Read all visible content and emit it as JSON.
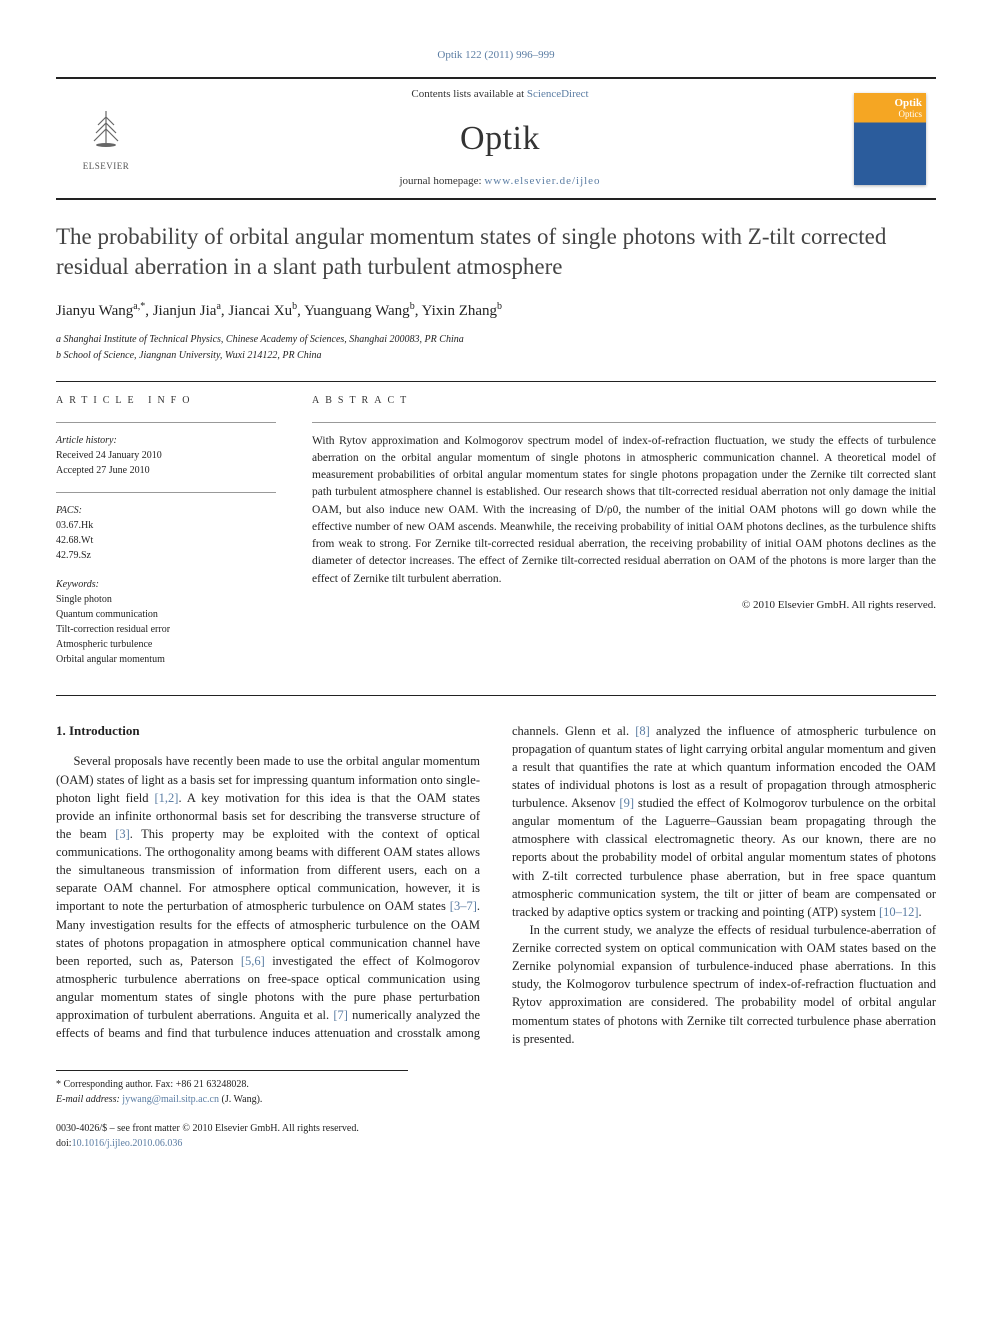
{
  "citation": "Optik 122 (2011) 996–999",
  "masthead": {
    "contents_line_prefix": "Contents lists available at ",
    "contents_link": "ScienceDirect",
    "journal": "Optik",
    "homepage_prefix": "journal homepage: ",
    "homepage_url": "www.elsevier.de/ijleo",
    "publisher_name": "ELSEVIER"
  },
  "title": "The probability of orbital angular momentum states of single photons with Z-tilt corrected residual aberration in a slant path turbulent atmosphere",
  "authors_html": "Jianyu Wang<sup>a,*</sup>, Jianjun Jia<sup>a</sup>, Jiancai Xu<sup>b</sup>, Yuanguang Wang<sup>b</sup>, Yixin Zhang<sup>b</sup>",
  "affiliations": [
    "a Shanghai Institute of Technical Physics, Chinese Academy of Sciences, Shanghai 200083, PR China",
    "b School of Science, Jiangnan University, Wuxi 214122, PR China"
  ],
  "article_info_label": "article info",
  "abstract_label": "abstract",
  "history": {
    "hd": "Article history:",
    "received": "Received 24 January 2010",
    "accepted": "Accepted 27 June 2010"
  },
  "pacs": {
    "hd": "PACS:",
    "items": [
      "03.67.Hk",
      "42.68.Wt",
      "42.79.Sz"
    ]
  },
  "keywords": {
    "hd": "Keywords:",
    "items": [
      "Single photon",
      "Quantum communication",
      "Tilt-correction residual error",
      "Atmospheric turbulence",
      "Orbital angular momentum"
    ]
  },
  "abstract": "With Rytov approximation and Kolmogorov spectrum model of index-of-refraction fluctuation, we study the effects of turbulence aberration on the orbital angular momentum of single photons in atmospheric communication channel. A theoretical model of measurement probabilities of orbital angular momentum states for single photons propagation under the Zernike tilt corrected slant path turbulent atmosphere channel is established. Our research shows that tilt-corrected residual aberration not only damage the initial OAM, but also induce new OAM. With the increasing of D/ρ0, the number of the initial OAM photons will go down while the effective number of new OAM ascends. Meanwhile, the receiving probability of initial OAM photons declines, as the turbulence shifts from weak to strong. For Zernike tilt-corrected residual aberration, the receiving probability of initial OAM photons declines as the diameter of detector increases. The effect of Zernike tilt-corrected residual aberration on OAM of the photons is more larger than the effect of Zernike tilt turbulent aberration.",
  "abstract_copyright": "© 2010 Elsevier GmbH. All rights reserved.",
  "intro_heading": "1. Introduction",
  "intro_p1_a": "Several proposals have recently been made to use the orbital angular momentum (OAM) states of light as a basis set for impressing quantum information onto single-photon light field ",
  "intro_p1_link1": "[1,2]",
  "intro_p1_b": ". A key motivation for this idea is that the OAM states provide an infinite orthonormal basis set for describing the transverse structure of the beam ",
  "intro_p1_link2": "[3]",
  "intro_p1_c": ". This property may be exploited with the context of optical communications. The orthogonality among beams with different OAM states allows the simultaneous transmission of information from different users, each on a separate OAM channel. For atmosphere optical communication, however, it is important to note the perturbation of atmospheric turbulence on OAM states ",
  "intro_p1_link3": "[3–7]",
  "intro_p1_d": ". Many investigation results for the effects of atmospheric turbulence on the OAM states of photons propagation in atmosphere optical communication channel have been reported, such as, Paterson ",
  "intro_p1_link4": "[5,6]",
  "intro_p1_e": " investigated the effect of Kolmogorov atmospheric turbulence aberrations on free-space optical communication using angular momentum states of single photons with the pure phase perturbation approximation of turbulent aberrations. Anguita et al. ",
  "intro_p1_link5": "[7]",
  "intro_p1_f": " numerically analyzed the effects of beams and find that turbulence induces attenuation and crosstalk among channels. Glenn et al. ",
  "intro_p1_link6": "[8]",
  "intro_p1_g": " analyzed the influence of atmospheric turbulence on propagation of quantum states of light carrying orbital angular momentum and given a result that quantifies the rate at which quantum information encoded the OAM states of individual photons is lost as a result of propagation through atmospheric turbulence. Aksenov ",
  "intro_p1_link7": "[9]",
  "intro_p1_h": " studied the effect of Kolmogorov turbulence on the orbital angular momentum of the Laguerre–Gaussian beam propagating through the atmosphere with classical electromagnetic theory. As our known, there are no reports about the probability model of orbital angular momentum states of photons with Z-tilt corrected turbulence phase aberration, but in free space quantum atmospheric communication system, the tilt or jitter of beam are compensated or tracked by adaptive optics system or tracking and pointing (ATP) system ",
  "intro_p1_link8": "[10–12]",
  "intro_p1_i": ".",
  "intro_p2": "In the current study, we analyze the effects of residual turbulence-aberration of Zernike corrected system on optical communication with OAM states based on the Zernike polynomial expansion of turbulence-induced phase aberrations. In this study, the Kolmogorov turbulence spectrum of index-of-refraction fluctuation and Rytov approximation are considered. The probability model of orbital angular momentum states of photons with Zernike tilt corrected turbulence phase aberration is presented.",
  "footnote_corr": "* Corresponding author. Fax: +86 21 63248028.",
  "footnote_email_label": "E-mail address: ",
  "footnote_email": "jywang@mail.sitp.ac.cn",
  "footnote_email_suffix": " (J. Wang).",
  "bottom": {
    "line1": "0030-4026/$ – see front matter © 2010 Elsevier GmbH. All rights reserved.",
    "doi_prefix": "doi:",
    "doi": "10.1016/j.ijleo.2010.06.036"
  }
}
